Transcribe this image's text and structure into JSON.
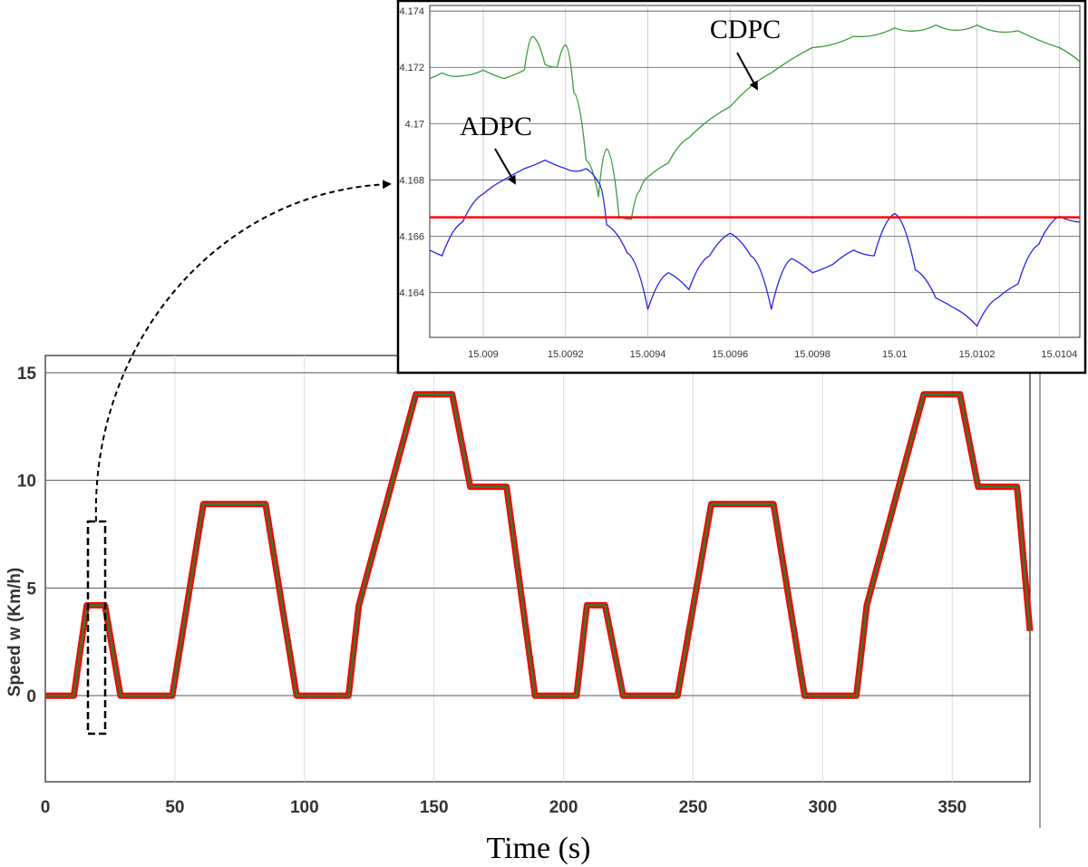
{
  "chart_data": [
    {
      "id": "main",
      "type": "line",
      "xlabel": "Time (s)",
      "ylabel": "Speed w (Km/h)",
      "xlim": [
        0,
        380
      ],
      "ylim": [
        -4,
        15.8
      ],
      "xticks": [
        0,
        50,
        100,
        150,
        200,
        250,
        300,
        350
      ],
      "yticks": [
        0,
        5,
        10,
        15
      ],
      "grid": true,
      "series": [
        {
          "color": "#ff0000",
          "x": [
            0,
            11,
            16,
            23,
            29,
            49,
            61,
            85,
            97,
            117,
            121,
            143,
            157,
            164,
            178,
            189,
            205,
            209,
            216,
            223,
            244,
            257,
            281,
            293,
            313,
            317,
            339,
            353,
            360,
            375,
            380
          ],
          "y": [
            0,
            0,
            4.2,
            4.2,
            0,
            0,
            8.9,
            8.9,
            0,
            0,
            4.2,
            14,
            14,
            9.7,
            9.7,
            0,
            0,
            4.2,
            4.2,
            0,
            0,
            8.9,
            8.9,
            0,
            0,
            4.2,
            14,
            14,
            9.7,
            9.7,
            3
          ]
        }
      ]
    },
    {
      "id": "inset",
      "type": "line",
      "xlim": [
        15.00887,
        15.01045
      ],
      "ylim": [
        4.1624,
        4.1742
      ],
      "xticks": [
        15.009,
        15.0092,
        15.0094,
        15.0096,
        15.0098,
        15.01,
        15.0102,
        15.0104
      ],
      "xtick_labels": [
        "15.009",
        "15.0092",
        "15.0094",
        "15.0096",
        "15.0098",
        "15.01",
        "15.0102",
        "15.0104"
      ],
      "yticks": [
        4.164,
        4.166,
        4.168,
        4.17,
        4.172,
        4.174
      ],
      "ytick_labels": [
        "4.164",
        "4.166",
        "4.168",
        "4.17",
        "4.172",
        "4.174"
      ],
      "grid": true,
      "series": [
        {
          "name": "CDPC",
          "color": "#3a9a3a",
          "x": [
            15.00887,
            15.0089,
            15.00895,
            15.009,
            15.00905,
            15.0091,
            15.00912,
            15.00915,
            15.00918,
            15.0092,
            15.00922,
            15.00925,
            15.00928,
            15.0093,
            15.00933,
            15.00936,
            15.00938,
            15.0094,
            15.00945,
            15.0095,
            15.0096,
            15.0097,
            15.0098,
            15.0099,
            15.01,
            15.0101,
            15.0102,
            15.0103,
            15.0104,
            15.01045
          ],
          "y": [
            4.1716,
            4.1718,
            4.1717,
            4.1719,
            4.1716,
            4.1719,
            4.1731,
            4.1721,
            4.172,
            4.1728,
            4.1711,
            4.1687,
            4.1674,
            4.1691,
            4.1667,
            4.1666,
            4.1676,
            4.1681,
            4.1686,
            4.1695,
            4.1706,
            4.1718,
            4.1727,
            4.1731,
            4.1734,
            4.1735,
            4.1735,
            4.1733,
            4.1727,
            4.1722
          ]
        },
        {
          "name": "ADPC",
          "color": "#2323e6",
          "x": [
            15.00887,
            15.0089,
            15.00895,
            15.009,
            15.00905,
            15.0091,
            15.00915,
            15.0092,
            15.00925,
            15.00928,
            15.0093,
            15.00935,
            15.0094,
            15.00945,
            15.0095,
            15.00955,
            15.0096,
            15.00965,
            15.0097,
            15.00975,
            15.0098,
            15.00985,
            15.0099,
            15.00995,
            15.01,
            15.01005,
            15.0101,
            15.01015,
            15.0102,
            15.01025,
            15.0103,
            15.01035,
            15.0104,
            15.01045
          ],
          "y": [
            4.1655,
            4.1653,
            4.1665,
            4.1675,
            4.168,
            4.1684,
            4.1687,
            4.1684,
            4.1684,
            4.1679,
            4.1664,
            4.1654,
            4.1634,
            4.1647,
            4.1641,
            4.1653,
            4.1661,
            4.1653,
            4.1634,
            4.1652,
            4.1647,
            4.165,
            4.1655,
            4.1653,
            4.1668,
            4.1648,
            4.1638,
            4.1634,
            4.1628,
            4.1638,
            4.1643,
            4.1657,
            4.1667,
            4.1665
          ]
        },
        {
          "color": "#ff0000",
          "x": [
            15.00887,
            15.01045
          ],
          "y": [
            4.16667,
            4.16667
          ]
        }
      ]
    }
  ]
}
